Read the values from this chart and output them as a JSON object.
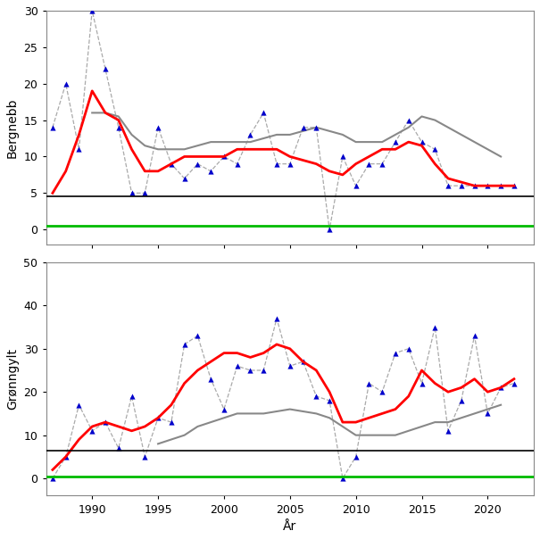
{
  "years": [
    1987,
    1988,
    1989,
    1990,
    1991,
    1992,
    1993,
    1994,
    1995,
    1996,
    1997,
    1998,
    1999,
    2000,
    2001,
    2002,
    2003,
    2004,
    2005,
    2006,
    2007,
    2008,
    2009,
    2010,
    2011,
    2012,
    2013,
    2014,
    2015,
    2016,
    2017,
    2018,
    2019,
    2020,
    2021,
    2022
  ],
  "bergnebb_raw": [
    14,
    20,
    11,
    30,
    22,
    14,
    5,
    5,
    14,
    9,
    7,
    9,
    8,
    10,
    9,
    13,
    16,
    9,
    9,
    14,
    14,
    0,
    10,
    6,
    9,
    9,
    12,
    15,
    12,
    11,
    6,
    6,
    6,
    6,
    6,
    6
  ],
  "bergnebb_red": [
    5,
    8,
    13,
    19,
    16,
    15,
    11,
    8,
    8,
    9,
    10,
    10,
    10,
    10,
    11,
    11,
    11,
    11,
    10,
    9.5,
    9,
    8,
    7.5,
    9,
    10,
    11,
    11,
    12,
    11.5,
    9,
    7,
    6.5,
    6,
    6,
    6,
    6
  ],
  "bergnebb_gray": [
    null,
    null,
    null,
    16,
    16,
    15.5,
    13,
    11.5,
    11,
    11,
    11,
    11.5,
    12,
    12,
    12,
    12,
    12.5,
    13,
    13,
    13.5,
    14,
    13.5,
    13,
    12,
    12,
    12,
    13,
    14,
    15.5,
    15,
    14,
    13,
    12,
    11,
    10,
    null
  ],
  "bergnebb_hline_black": 4.5,
  "bergnebb_hline_green": 0.5,
  "bergnebb_ylim": [
    -2,
    30
  ],
  "bergnebb_yticks": [
    0,
    5,
    10,
    15,
    20,
    25,
    30
  ],
  "gronngylt_raw": [
    0,
    5,
    17,
    11,
    13,
    7,
    19,
    5,
    14,
    13,
    31,
    33,
    23,
    16,
    26,
    25,
    25,
    37,
    26,
    27,
    19,
    18,
    0,
    5,
    22,
    20,
    29,
    30,
    22,
    35,
    11,
    18,
    33,
    15,
    21,
    22
  ],
  "gronngylt_red": [
    2,
    5,
    9,
    12,
    13,
    12,
    11,
    12,
    14,
    17,
    22,
    25,
    27,
    29,
    29,
    28,
    29,
    31,
    30,
    27,
    25,
    20,
    13,
    13,
    14,
    15,
    16,
    19,
    25,
    22,
    20,
    21,
    23,
    20,
    21,
    23
  ],
  "gronngylt_gray": [
    null,
    null,
    null,
    null,
    null,
    null,
    null,
    null,
    8,
    9,
    10,
    12,
    13,
    14,
    15,
    15,
    15,
    15.5,
    16,
    15.5,
    15,
    14,
    12,
    10,
    10,
    10,
    10,
    11,
    12,
    13,
    13,
    14,
    15,
    16,
    17,
    null
  ],
  "gronngylt_hline_black": 6.5,
  "gronngylt_hline_green": 0.5,
  "gronngylt_ylim": [
    -4,
    50
  ],
  "gronngylt_yticks": [
    0,
    10,
    20,
    30,
    40,
    50
  ],
  "xlabel": "År",
  "ylabel_top": "Bergnebb",
  "ylabel_bottom": "Grønngylt",
  "color_raw_line": "#aaaaaa",
  "color_red": "#ff0000",
  "color_gray": "#888888",
  "color_triangle": "#0000cc",
  "color_hline_black": "#000000",
  "color_hline_green": "#00bb00",
  "color_bg": "#ffffff"
}
